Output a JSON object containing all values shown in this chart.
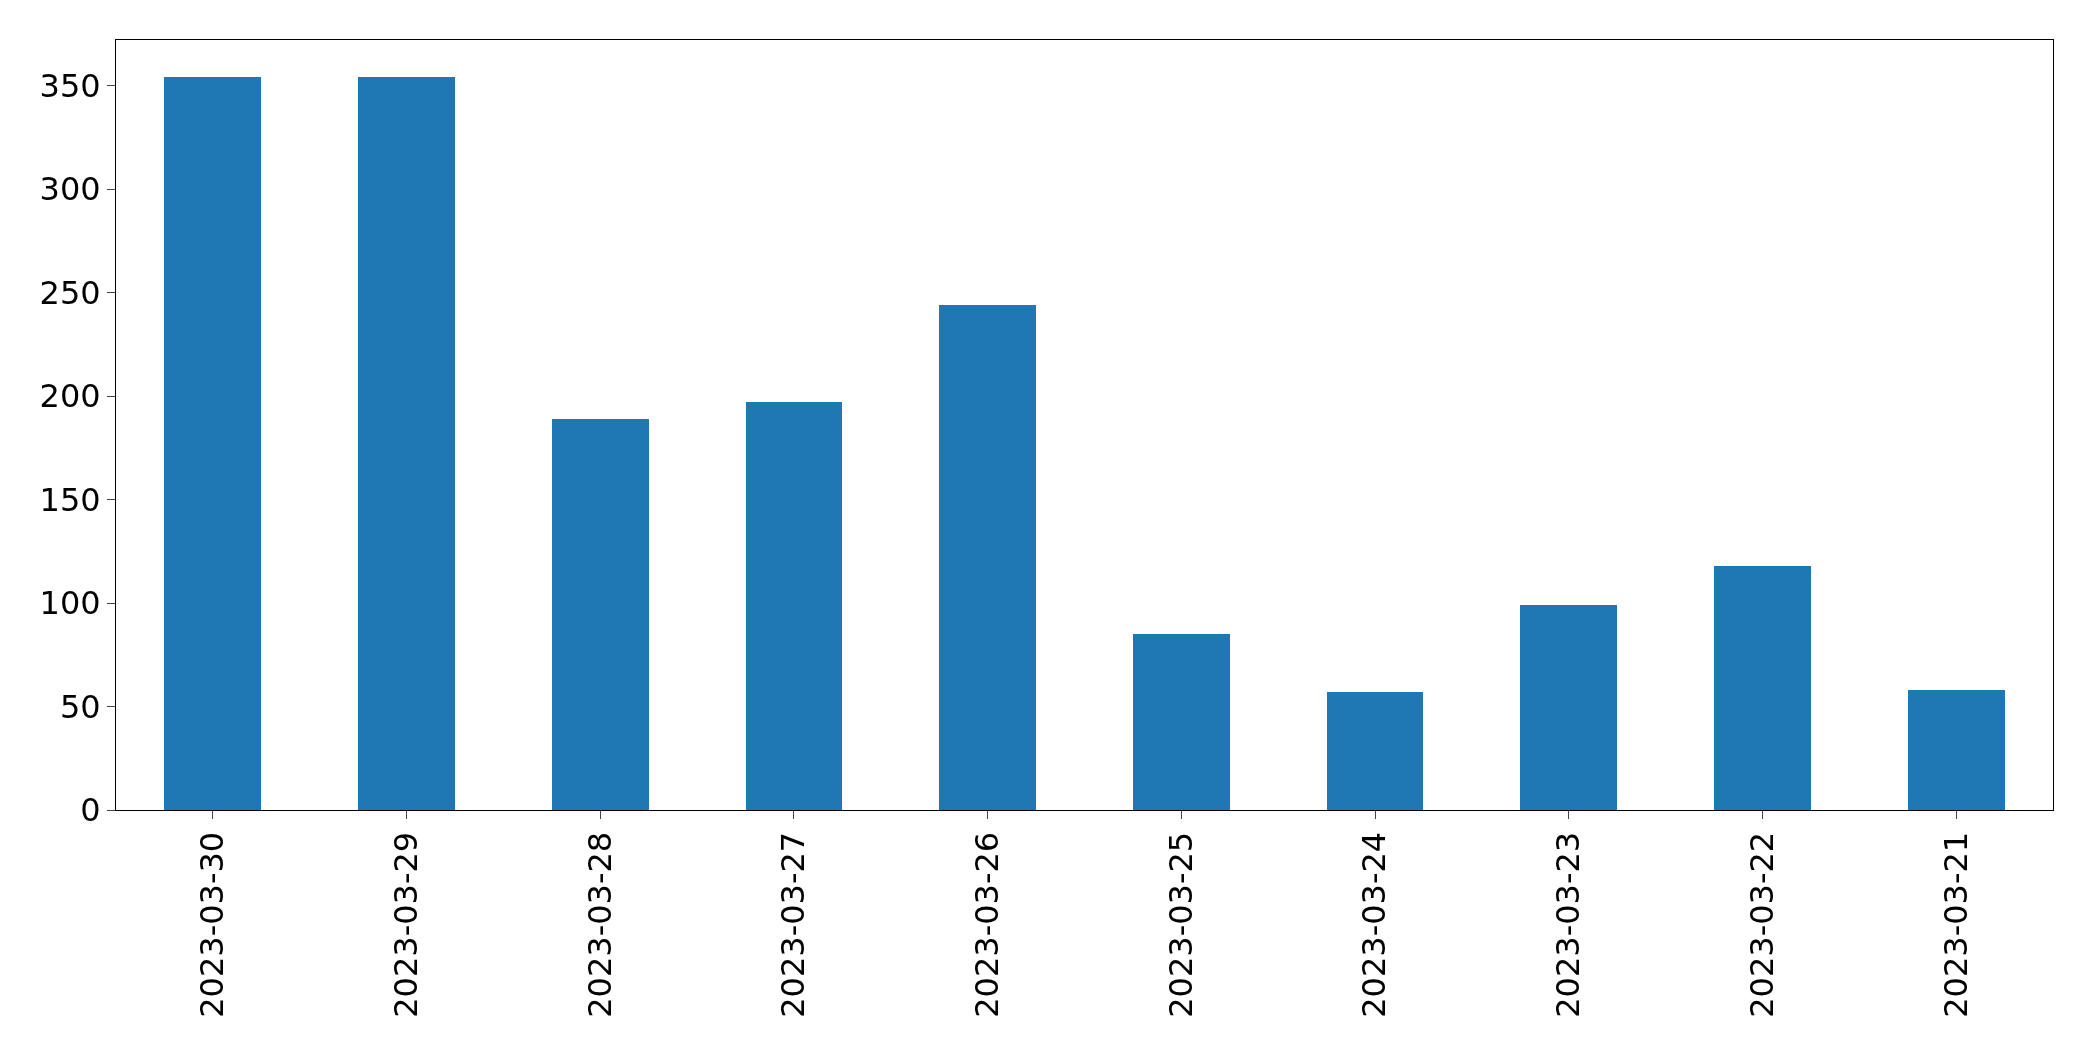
{
  "chart_data": {
    "type": "bar",
    "categories": [
      "2023-03-30",
      "2023-03-29",
      "2023-03-28",
      "2023-03-27",
      "2023-03-26",
      "2023-03-25",
      "2023-03-24",
      "2023-03-23",
      "2023-03-22",
      "2023-03-21"
    ],
    "values": [
      354,
      354,
      189,
      197,
      244,
      85,
      57,
      99,
      118,
      58
    ],
    "color": "#1f77b4",
    "ylim": [
      0,
      372
    ],
    "yticks": [
      0,
      50,
      100,
      150,
      200,
      250,
      300,
      350
    ],
    "grid": false
  }
}
